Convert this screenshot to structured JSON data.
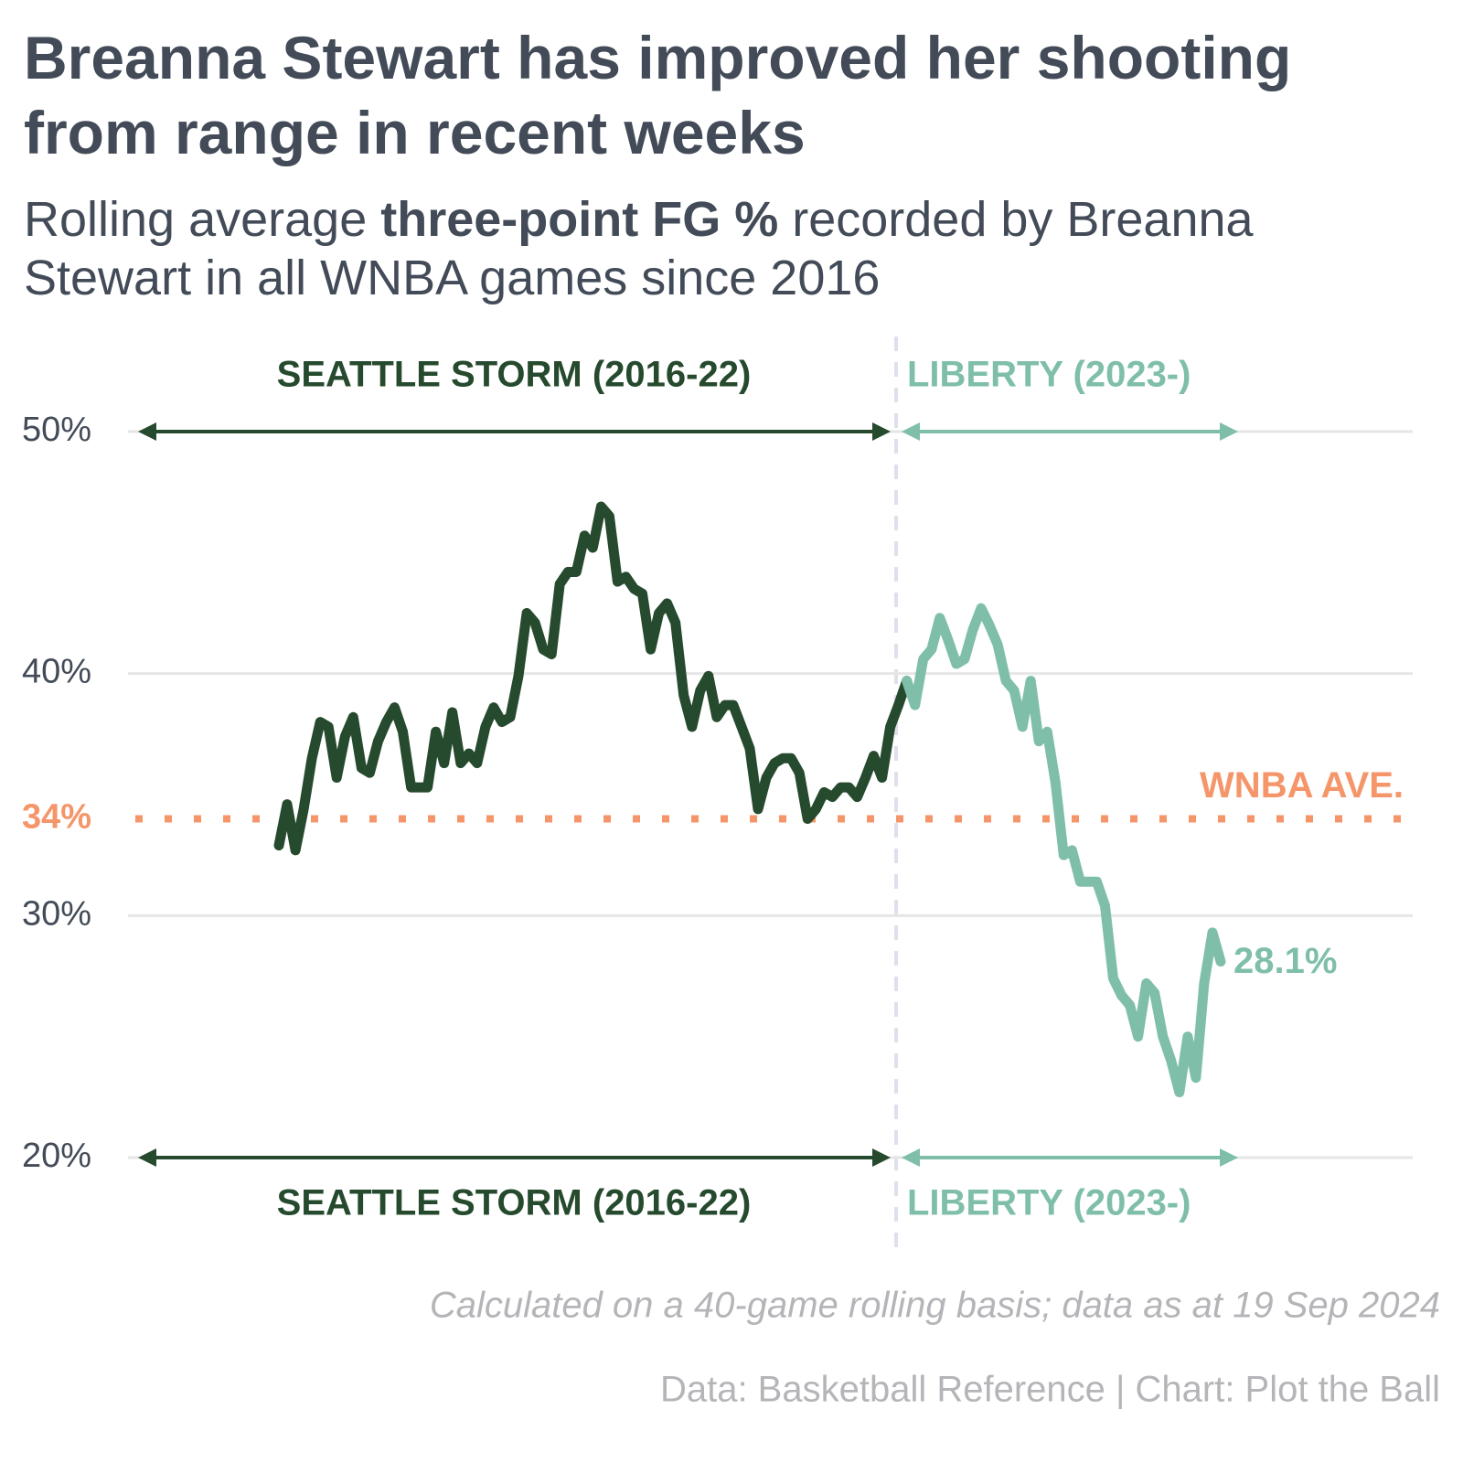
{
  "chart_data": {
    "type": "line",
    "title": "Breanna Stewart has improved her shooting from range in recent weeks",
    "subtitle": [
      "Rolling average ",
      "three-point FG %",
      " recorded by Breanna Stewart in all WNBA games since 2016"
    ],
    "note": "Calculated on a 40-game rolling basis; data as at 19 Sep 2024",
    "source": "Data: Basketball Reference | Chart: Plot the Ball",
    "ylim": [
      20,
      50
    ],
    "yticks": [
      {
        "value": 20,
        "label": "20%"
      },
      {
        "value": 30,
        "label": "30%"
      },
      {
        "value": 40,
        "label": "40%"
      },
      {
        "value": 50,
        "label": "50%"
      }
    ],
    "grid": true,
    "reference": {
      "value": 34,
      "label": "34%",
      "name": "WNBA AVE.",
      "color": "#f5956a"
    },
    "series": [
      {
        "name": "SEATTLE STORM (2016-22)",
        "color": "#264a2e",
        "values": [
          32.9,
          34.6,
          32.7,
          34.4,
          36.5,
          38.0,
          37.8,
          35.7,
          37.4,
          38.2,
          36.1,
          35.9,
          37.2,
          38.0,
          38.6,
          37.6,
          35.3,
          35.3,
          35.3,
          37.6,
          36.3,
          38.4,
          36.3,
          36.7,
          36.3,
          37.8,
          38.6,
          38.0,
          38.2,
          39.9,
          42.5,
          42.1,
          41.0,
          40.8,
          43.7,
          44.2,
          44.2,
          45.7,
          45.2,
          46.9,
          46.5,
          43.8,
          44.0,
          43.5,
          43.3,
          41.0,
          42.5,
          42.9,
          42.1,
          39.1,
          37.8,
          39.3,
          39.9,
          38.2,
          38.7,
          38.7,
          37.8,
          36.9,
          34.4,
          35.7,
          36.3,
          36.5,
          36.5,
          35.9,
          34.0,
          34.4,
          35.1,
          34.9,
          35.3,
          35.3,
          34.9,
          35.7,
          36.6,
          35.7,
          37.8,
          38.7,
          39.7
        ]
      },
      {
        "name": "LIBERTY (2023-)",
        "color": "#7fbfaa",
        "values": [
          39.7,
          38.7,
          40.6,
          41.0,
          42.3,
          41.4,
          40.4,
          40.6,
          41.8,
          42.7,
          42.0,
          41.2,
          39.7,
          39.3,
          37.8,
          39.7,
          37.2,
          37.6,
          35.5,
          32.5,
          32.7,
          31.4,
          31.4,
          31.4,
          30.4,
          27.4,
          26.7,
          26.3,
          25.0,
          27.2,
          26.8,
          25.0,
          24.0,
          22.7,
          25.0,
          23.3,
          27.2,
          29.3,
          28.1
        ],
        "value_labels": [
          null,
          null,
          null,
          null,
          null,
          null,
          null,
          null,
          null,
          null,
          null,
          null,
          null,
          null,
          null,
          null,
          null,
          null,
          null,
          null,
          null,
          null,
          null,
          null,
          null,
          null,
          null,
          null,
          null,
          null,
          null,
          null,
          null,
          null,
          null,
          null,
          null,
          null,
          "28.1%"
        ]
      }
    ]
  }
}
